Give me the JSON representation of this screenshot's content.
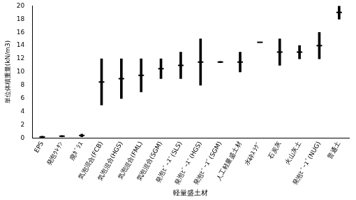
{
  "chart_data": {
    "type": "range",
    "categories": [
      "EPS",
      "発泡ｳﾚﾀﾝ",
      "廃ｶﾞﾗｽ",
      "気泡混合(FCB)",
      "気泡混合(HGS)",
      "気泡混合(FML)",
      "気泡混合(SGM)",
      "発泡ﾋﾞｰｽﾞ(SLS)",
      "発泡ﾋﾞｰｽﾞ(HGS)",
      "発泡ﾋﾞｰｽﾞ(SGM)",
      "人工軽量盛土材",
      "水砕ｽﾗｸﾞ",
      "石炭灰",
      "火山灰土",
      "発泡ﾋﾞｰｽﾞ(NUG)",
      "普通土"
    ],
    "low": [
      0.1,
      0.2,
      0.2,
      5,
      6,
      7,
      9,
      9,
      8,
      11.4,
      10,
      14.5,
      11,
      12,
      12,
      18
    ],
    "high": [
      0.3,
      0.4,
      0.6,
      12,
      12,
      12,
      12,
      13,
      15,
      11.6,
      13,
      14.5,
      15,
      14,
      16,
      20
    ],
    "values": [
      0.2,
      0.3,
      0.4,
      8.5,
      9,
      9.5,
      10.5,
      11,
      11.5,
      11.5,
      11.5,
      14.5,
      13,
      13,
      14,
      19
    ],
    "color": "#000000",
    "x_label": "軽量盛土材",
    "y_label": "単位体積重量(kN/m3)",
    "ylim": [
      0,
      20
    ],
    "yticks": [
      0,
      2,
      4,
      6,
      8,
      10,
      12,
      14,
      16,
      18,
      20
    ],
    "grid": false
  }
}
